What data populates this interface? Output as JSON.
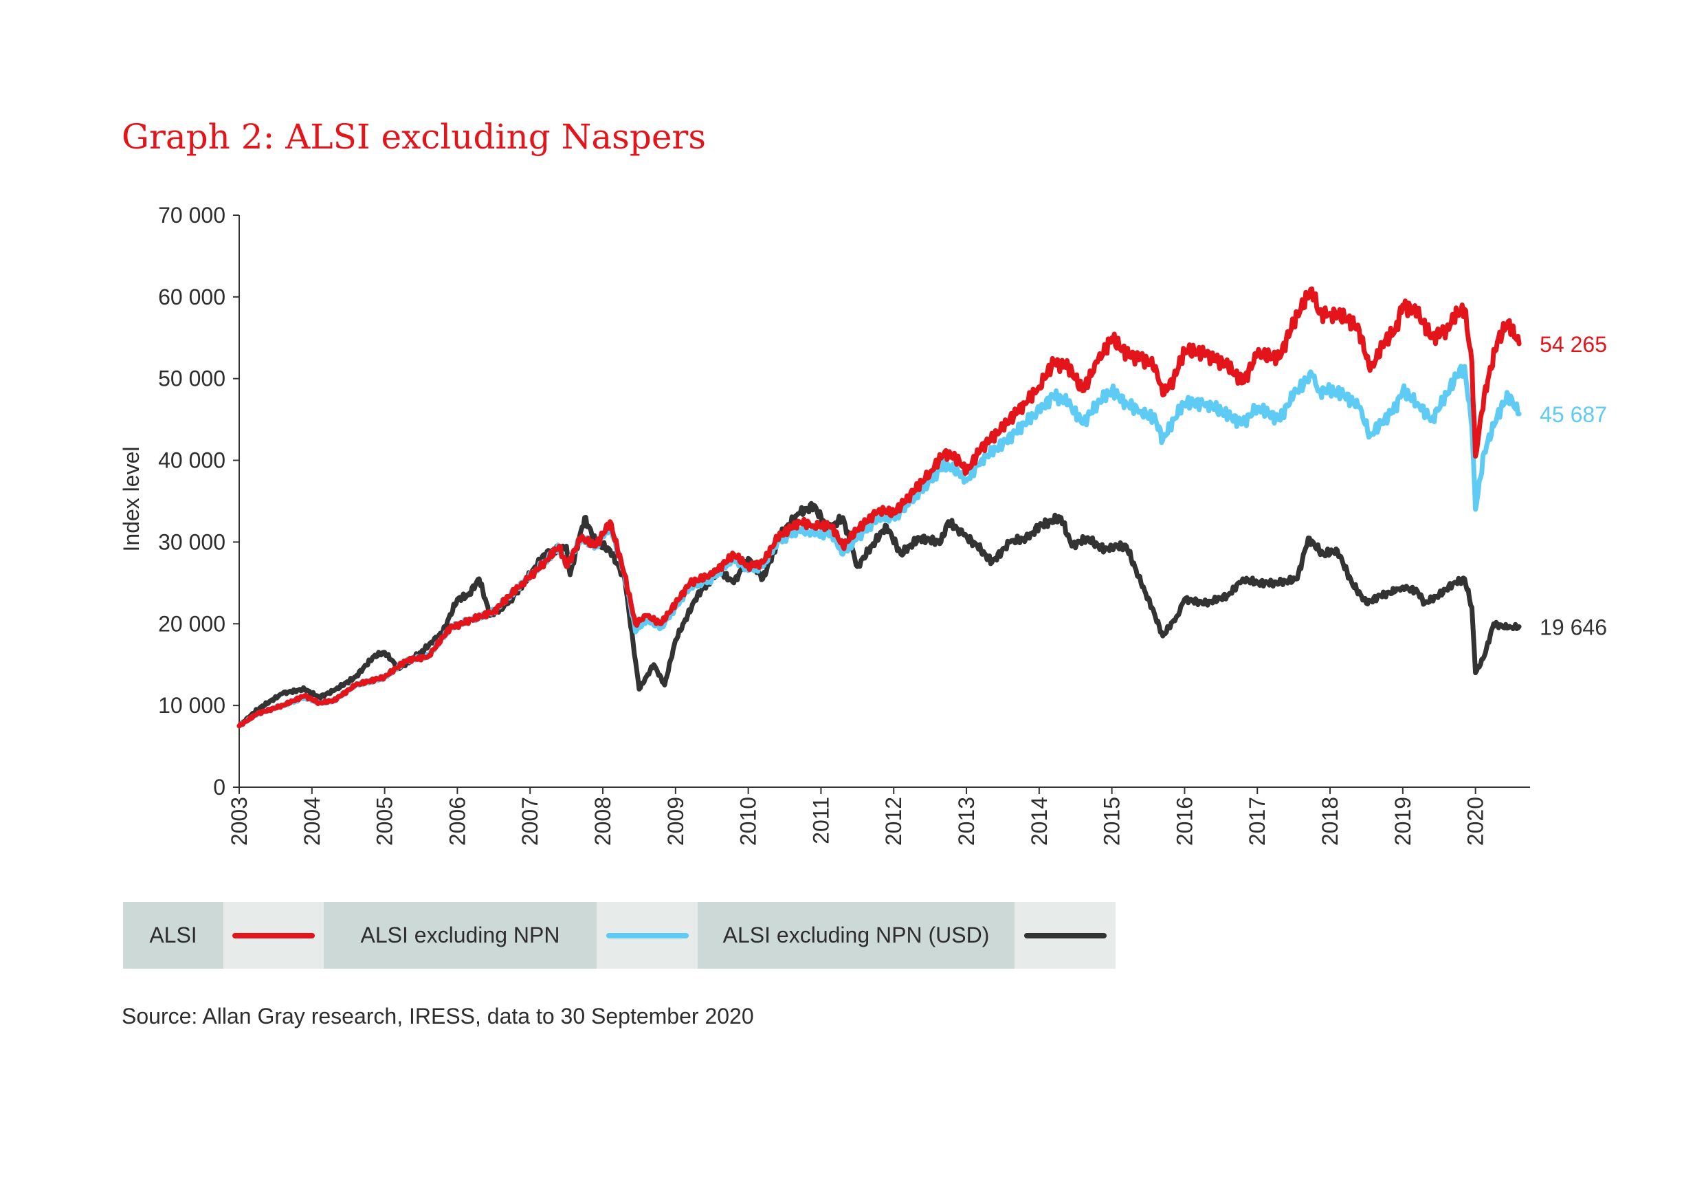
{
  "title": "Graph 2: ALSI excluding Naspers",
  "source": "Source: Allan Gray research, IRESS, data to 30 September 2020",
  "colors": {
    "alsi": "#e3151a",
    "alsi_ex_npn": "#5ecbf5",
    "alsi_ex_npn_usd": "#333333",
    "axis": "#333333"
  },
  "legend": [
    {
      "label": "ALSI",
      "color": "#e3151a"
    },
    {
      "label": "ALSI excluding NPN",
      "color": "#5ecbf5"
    },
    {
      "label": "ALSI excluding NPN (USD)",
      "color": "#333333"
    }
  ],
  "chart_data": {
    "type": "line",
    "title": "Graph 2: ALSI excluding Naspers",
    "ylabel": "Index level",
    "xlabel": "",
    "ylim": [
      0,
      70000
    ],
    "xlim": [
      2003,
      2020.75
    ],
    "x_ticks": [
      "2003",
      "2004",
      "2005",
      "2006",
      "2007",
      "2008",
      "2009",
      "2010",
      "2011",
      "2012",
      "2013",
      "2014",
      "2015",
      "2016",
      "2017",
      "2018",
      "2019",
      "2020"
    ],
    "y_ticks": [
      "0",
      "10 000",
      "20 000",
      "30 000",
      "40 000",
      "50 000",
      "60 000",
      "70 000"
    ],
    "grid": false,
    "series": [
      {
        "name": "ALSI",
        "color": "#e3151a",
        "end_label": "54 265",
        "points": [
          [
            2003.0,
            7500
          ],
          [
            2003.25,
            9000
          ],
          [
            2003.6,
            10000
          ],
          [
            2003.9,
            11200
          ],
          [
            2004.1,
            10300
          ],
          [
            2004.3,
            10600
          ],
          [
            2004.6,
            12500
          ],
          [
            2005.0,
            13500
          ],
          [
            2005.3,
            15500
          ],
          [
            2005.6,
            16000
          ],
          [
            2005.9,
            19500
          ],
          [
            2006.2,
            20500
          ],
          [
            2006.5,
            21500
          ],
          [
            2006.9,
            25000
          ],
          [
            2007.2,
            27500
          ],
          [
            2007.4,
            29500
          ],
          [
            2007.5,
            27000
          ],
          [
            2007.7,
            30500
          ],
          [
            2007.9,
            29500
          ],
          [
            2008.1,
            32500
          ],
          [
            2008.3,
            26000
          ],
          [
            2008.45,
            20000
          ],
          [
            2008.6,
            21000
          ],
          [
            2008.8,
            20000
          ],
          [
            2009.0,
            22500
          ],
          [
            2009.2,
            25000
          ],
          [
            2009.5,
            26000
          ],
          [
            2009.8,
            28500
          ],
          [
            2010.0,
            27000
          ],
          [
            2010.2,
            27500
          ],
          [
            2010.4,
            30500
          ],
          [
            2010.7,
            32500
          ],
          [
            2010.9,
            32000
          ],
          [
            2011.15,
            32000
          ],
          [
            2011.3,
            29500
          ],
          [
            2011.5,
            31500
          ],
          [
            2011.8,
            34000
          ],
          [
            2012.0,
            33500
          ],
          [
            2012.2,
            35500
          ],
          [
            2012.5,
            38500
          ],
          [
            2012.7,
            41000
          ],
          [
            2012.9,
            40000
          ],
          [
            2013.0,
            38500
          ],
          [
            2013.2,
            41500
          ],
          [
            2013.5,
            44000
          ],
          [
            2013.8,
            47000
          ],
          [
            2014.0,
            49000
          ],
          [
            2014.2,
            52000
          ],
          [
            2014.4,
            51500
          ],
          [
            2014.6,
            48500
          ],
          [
            2014.8,
            52000
          ],
          [
            2015.0,
            55000
          ],
          [
            2015.2,
            53000
          ],
          [
            2015.4,
            52500
          ],
          [
            2015.6,
            51500
          ],
          [
            2015.7,
            48000
          ],
          [
            2015.85,
            50000
          ],
          [
            2016.0,
            53500
          ],
          [
            2016.3,
            53000
          ],
          [
            2016.6,
            51500
          ],
          [
            2016.8,
            49500
          ],
          [
            2017.0,
            53000
          ],
          [
            2017.3,
            52500
          ],
          [
            2017.5,
            57000
          ],
          [
            2017.75,
            61000
          ],
          [
            2017.85,
            58000
          ],
          [
            2018.0,
            58000
          ],
          [
            2018.2,
            57500
          ],
          [
            2018.4,
            56000
          ],
          [
            2018.55,
            51000
          ],
          [
            2018.75,
            54500
          ],
          [
            2018.9,
            56000
          ],
          [
            2019.0,
            59000
          ],
          [
            2019.2,
            58000
          ],
          [
            2019.4,
            55000
          ],
          [
            2019.6,
            56000
          ],
          [
            2019.75,
            58000
          ],
          [
            2019.85,
            58500
          ],
          [
            2019.95,
            52000
          ],
          [
            2020.0,
            40500
          ],
          [
            2020.12,
            48000
          ],
          [
            2020.3,
            54500
          ],
          [
            2020.45,
            57000
          ],
          [
            2020.6,
            54265
          ]
        ]
      },
      {
        "name": "ALSI excluding NPN",
        "color": "#5ecbf5",
        "end_label": "45 687",
        "points": [
          [
            2003.0,
            7500
          ],
          [
            2003.25,
            9000
          ],
          [
            2003.6,
            10000
          ],
          [
            2003.9,
            11000
          ],
          [
            2004.1,
            10300
          ],
          [
            2004.3,
            10600
          ],
          [
            2004.6,
            12500
          ],
          [
            2005.0,
            13400
          ],
          [
            2005.3,
            15500
          ],
          [
            2005.6,
            16000
          ],
          [
            2005.9,
            19500
          ],
          [
            2006.2,
            20500
          ],
          [
            2006.5,
            21500
          ],
          [
            2006.9,
            25000
          ],
          [
            2007.2,
            27500
          ],
          [
            2007.4,
            29500
          ],
          [
            2007.5,
            27000
          ],
          [
            2007.7,
            30500
          ],
          [
            2007.9,
            29500
          ],
          [
            2008.1,
            32000
          ],
          [
            2008.3,
            26000
          ],
          [
            2008.45,
            19000
          ],
          [
            2008.6,
            20500
          ],
          [
            2008.8,
            19500
          ],
          [
            2009.0,
            22000
          ],
          [
            2009.2,
            24500
          ],
          [
            2009.5,
            25500
          ],
          [
            2009.8,
            28000
          ],
          [
            2010.0,
            26500
          ],
          [
            2010.2,
            27000
          ],
          [
            2010.4,
            30000
          ],
          [
            2010.7,
            31500
          ],
          [
            2010.9,
            31000
          ],
          [
            2011.15,
            31000
          ],
          [
            2011.3,
            28500
          ],
          [
            2011.5,
            30500
          ],
          [
            2011.8,
            33000
          ],
          [
            2012.0,
            33000
          ],
          [
            2012.2,
            34500
          ],
          [
            2012.5,
            37500
          ],
          [
            2012.7,
            39500
          ],
          [
            2012.9,
            38500
          ],
          [
            2013.0,
            37500
          ],
          [
            2013.2,
            40000
          ],
          [
            2013.5,
            42000
          ],
          [
            2013.8,
            44500
          ],
          [
            2014.0,
            46000
          ],
          [
            2014.2,
            48000
          ],
          [
            2014.4,
            47000
          ],
          [
            2014.6,
            44500
          ],
          [
            2014.8,
            47000
          ],
          [
            2015.0,
            48500
          ],
          [
            2015.2,
            47000
          ],
          [
            2015.4,
            46000
          ],
          [
            2015.6,
            45000
          ],
          [
            2015.7,
            42500
          ],
          [
            2015.85,
            45000
          ],
          [
            2016.0,
            47000
          ],
          [
            2016.3,
            47000
          ],
          [
            2016.6,
            45500
          ],
          [
            2016.8,
            44500
          ],
          [
            2017.0,
            46500
          ],
          [
            2017.3,
            45000
          ],
          [
            2017.5,
            48000
          ],
          [
            2017.75,
            50500
          ],
          [
            2017.85,
            48500
          ],
          [
            2018.0,
            48500
          ],
          [
            2018.2,
            48000
          ],
          [
            2018.4,
            46500
          ],
          [
            2018.55,
            43000
          ],
          [
            2018.75,
            45000
          ],
          [
            2018.9,
            46500
          ],
          [
            2019.0,
            48500
          ],
          [
            2019.2,
            47000
          ],
          [
            2019.4,
            45000
          ],
          [
            2019.6,
            48000
          ],
          [
            2019.75,
            50500
          ],
          [
            2019.85,
            51500
          ],
          [
            2019.95,
            44000
          ],
          [
            2020.0,
            34000
          ],
          [
            2020.12,
            41000
          ],
          [
            2020.3,
            45500
          ],
          [
            2020.45,
            48000
          ],
          [
            2020.6,
            45687
          ]
        ]
      },
      {
        "name": "ALSI excluding NPN (USD)",
        "color": "#333333",
        "end_label": "19 646",
        "points": [
          [
            2003.0,
            7500
          ],
          [
            2003.25,
            9500
          ],
          [
            2003.6,
            11500
          ],
          [
            2003.9,
            12000
          ],
          [
            2004.1,
            11000
          ],
          [
            2004.3,
            11800
          ],
          [
            2004.6,
            13500
          ],
          [
            2004.85,
            16000
          ],
          [
            2005.0,
            16500
          ],
          [
            2005.2,
            14500
          ],
          [
            2005.5,
            16500
          ],
          [
            2005.8,
            19000
          ],
          [
            2006.0,
            23000
          ],
          [
            2006.15,
            23500
          ],
          [
            2006.3,
            25500
          ],
          [
            2006.45,
            21000
          ],
          [
            2006.7,
            22500
          ],
          [
            2007.0,
            26000
          ],
          [
            2007.2,
            28500
          ],
          [
            2007.5,
            29500
          ],
          [
            2007.55,
            26000
          ],
          [
            2007.75,
            33000
          ],
          [
            2007.9,
            30000
          ],
          [
            2008.1,
            29000
          ],
          [
            2008.3,
            25500
          ],
          [
            2008.5,
            12000
          ],
          [
            2008.7,
            15000
          ],
          [
            2008.85,
            12500
          ],
          [
            2009.0,
            18000
          ],
          [
            2009.3,
            23500
          ],
          [
            2009.6,
            26500
          ],
          [
            2009.8,
            25000
          ],
          [
            2010.0,
            28000
          ],
          [
            2010.2,
            25500
          ],
          [
            2010.45,
            31000
          ],
          [
            2010.7,
            33500
          ],
          [
            2010.9,
            34500
          ],
          [
            2011.1,
            31500
          ],
          [
            2011.3,
            33000
          ],
          [
            2011.5,
            27000
          ],
          [
            2011.7,
            29500
          ],
          [
            2011.9,
            32000
          ],
          [
            2012.1,
            28500
          ],
          [
            2012.35,
            30500
          ],
          [
            2012.65,
            30000
          ],
          [
            2012.75,
            32500
          ],
          [
            2012.95,
            31000
          ],
          [
            2013.15,
            29500
          ],
          [
            2013.35,
            27500
          ],
          [
            2013.6,
            30000
          ],
          [
            2013.85,
            30500
          ],
          [
            2014.0,
            32000
          ],
          [
            2014.3,
            33000
          ],
          [
            2014.45,
            29500
          ],
          [
            2014.65,
            30500
          ],
          [
            2014.9,
            29000
          ],
          [
            2015.0,
            29500
          ],
          [
            2015.2,
            29500
          ],
          [
            2015.4,
            25000
          ],
          [
            2015.55,
            22000
          ],
          [
            2015.7,
            18500
          ],
          [
            2015.9,
            21000
          ],
          [
            2016.0,
            23000
          ],
          [
            2016.3,
            22500
          ],
          [
            2016.6,
            23500
          ],
          [
            2016.8,
            25500
          ],
          [
            2017.0,
            25000
          ],
          [
            2017.3,
            25000
          ],
          [
            2017.55,
            25500
          ],
          [
            2017.7,
            30500
          ],
          [
            2017.9,
            28500
          ],
          [
            2018.1,
            29000
          ],
          [
            2018.3,
            25000
          ],
          [
            2018.5,
            22500
          ],
          [
            2018.7,
            23500
          ],
          [
            2018.9,
            24000
          ],
          [
            2019.0,
            24500
          ],
          [
            2019.2,
            24000
          ],
          [
            2019.3,
            22500
          ],
          [
            2019.5,
            23500
          ],
          [
            2019.7,
            25000
          ],
          [
            2019.85,
            25500
          ],
          [
            2019.95,
            22000
          ],
          [
            2020.0,
            14000
          ],
          [
            2020.12,
            16000
          ],
          [
            2020.25,
            20000
          ],
          [
            2020.45,
            19500
          ],
          [
            2020.6,
            19646
          ]
        ]
      }
    ]
  }
}
